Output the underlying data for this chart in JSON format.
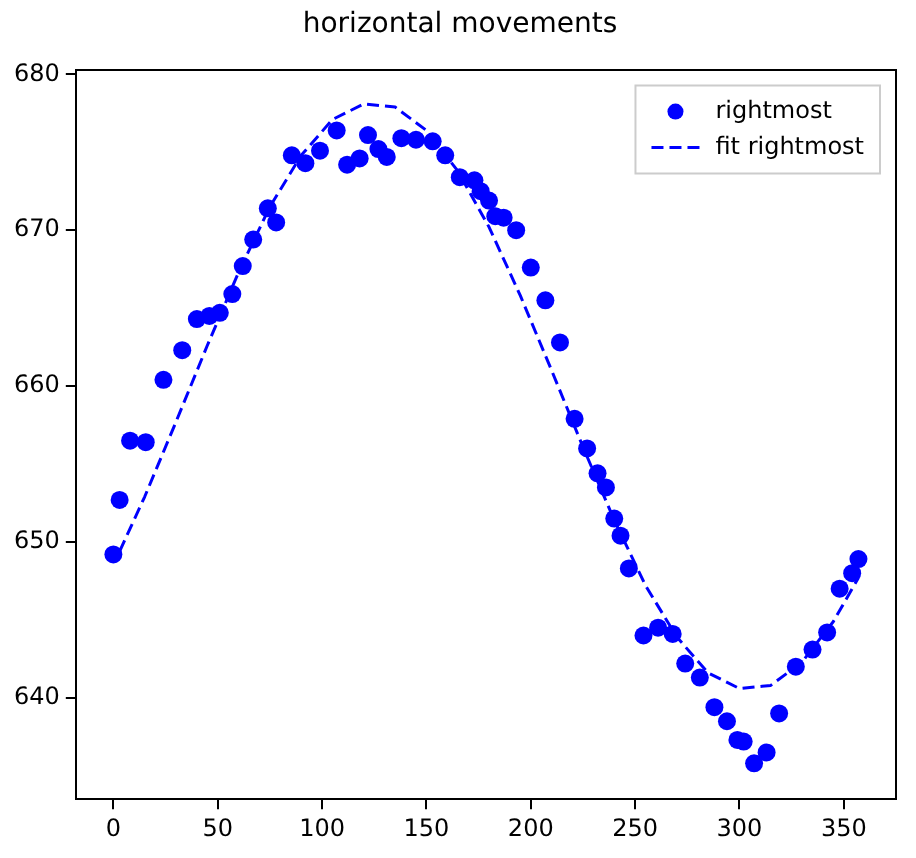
{
  "chart_data": {
    "type": "scatter",
    "title": "horizontal movements",
    "legend": "top right",
    "grid": false,
    "xlim": [
      -18,
      375
    ],
    "xticks": [
      0,
      50,
      100,
      150,
      200,
      250,
      300,
      350
    ],
    "ylim": [
      633.5,
      680.3
    ],
    "yticks": [
      640,
      650,
      660,
      670,
      680
    ],
    "series": [
      {
        "name": "rightmost",
        "type": "scatter",
        "color": "#0000ff",
        "marker": "circle",
        "x": [
          0,
          3,
          8,
          15.5,
          24,
          33,
          40,
          46,
          51,
          57,
          62,
          67,
          74,
          78,
          85.5,
          92,
          99,
          107,
          112,
          118,
          122,
          127,
          131,
          138,
          145,
          153,
          159,
          166,
          173,
          176,
          180,
          183,
          187,
          193,
          200,
          207,
          214,
          221,
          227,
          232,
          236,
          240,
          243,
          247,
          254,
          261,
          268,
          274,
          281,
          288,
          294,
          299,
          302,
          307,
          313,
          319,
          327,
          335,
          342,
          348,
          354,
          357
        ],
        "values": [
          649.2,
          652.7,
          656.5,
          656.4,
          660.4,
          662.3,
          664.3,
          664.5,
          664.7,
          665.9,
          667.7,
          669.4,
          671.4,
          670.5,
          674.8,
          674.3,
          675.1,
          676.4,
          674.2,
          674.6,
          676.1,
          675.2,
          674.7,
          675.9,
          675.8,
          675.7,
          674.8,
          673.4,
          673.2,
          672.5,
          671.9,
          670.9,
          670.8,
          670.0,
          667.6,
          665.5,
          662.8,
          657.9,
          656.0,
          654.4,
          653.5,
          651.5,
          650.4,
          648.3,
          644.0,
          644.5,
          644.1,
          642.2,
          641.3,
          639.4,
          638.5,
          637.3,
          637.2,
          635.8,
          636.5,
          639.0,
          642.0,
          643.1,
          644.2,
          647.0,
          648.0,
          648.9
        ]
      },
      {
        "name": "fit rightmost",
        "type": "line",
        "color": "#0000ff",
        "line_style": "dashed",
        "marker": "none",
        "x": [
          3,
          15,
          30,
          45,
          60,
          75,
          90,
          105,
          120,
          135,
          150,
          165,
          180,
          195,
          210,
          225,
          240,
          255,
          270,
          285,
          300,
          315,
          330,
          345,
          357
        ],
        "values": [
          649.4,
          652.9,
          657.7,
          662.6,
          667.3,
          671.5,
          674.8,
          677.1,
          678.1,
          677.9,
          676.4,
          673.8,
          670.2,
          665.8,
          661.0,
          656.1,
          651.4,
          647.2,
          643.9,
          641.6,
          640.6,
          640.8,
          642.3,
          644.9,
          647.7
        ]
      }
    ]
  }
}
